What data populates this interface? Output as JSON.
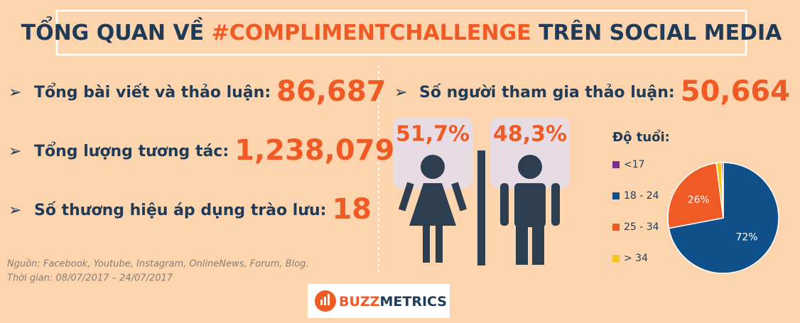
{
  "header": {
    "title_parts": [
      "TỔNG QUAN VỀ ",
      "#COMPLIMENTCHALLENGE",
      "  TRÊN SOCIAL MEDIA"
    ]
  },
  "stats": [
    {
      "label": "Tổng bài viết và thảo luận:",
      "value": "86,687"
    },
    {
      "label": "Tổng lượng tương tác:",
      "value": "1,238,079"
    },
    {
      "label": "Số thương hiệu áp dụng trào lưu:",
      "value": "18"
    },
    {
      "label": "Số người tham gia thảo luận:",
      "value": "50,664"
    }
  ],
  "gender": {
    "female": "51,7%",
    "male": "48,3%"
  },
  "source": [
    "Nguồn: Facebook, Youtube, Instagram, OnlineNews, Forum, Blog.",
    "Thời gian: 08/07/2017 – 24/07/2017"
  ],
  "logo": {
    "parts": [
      "BUZZ",
      "METRICS"
    ]
  },
  "chart_data": {
    "type": "pie",
    "title": "Độ tuổi:",
    "categories": [
      "<17",
      "18 - 24",
      "25 - 34",
      "> 34"
    ],
    "values": [
      0.5,
      72,
      26,
      1.5
    ],
    "value_labels": [
      null,
      "72%",
      "26%",
      null
    ],
    "colors": [
      "#7b2d8e",
      "#10508a",
      "#f05a24",
      "#f7c516"
    ],
    "order": [
      1,
      2,
      3,
      0
    ]
  }
}
